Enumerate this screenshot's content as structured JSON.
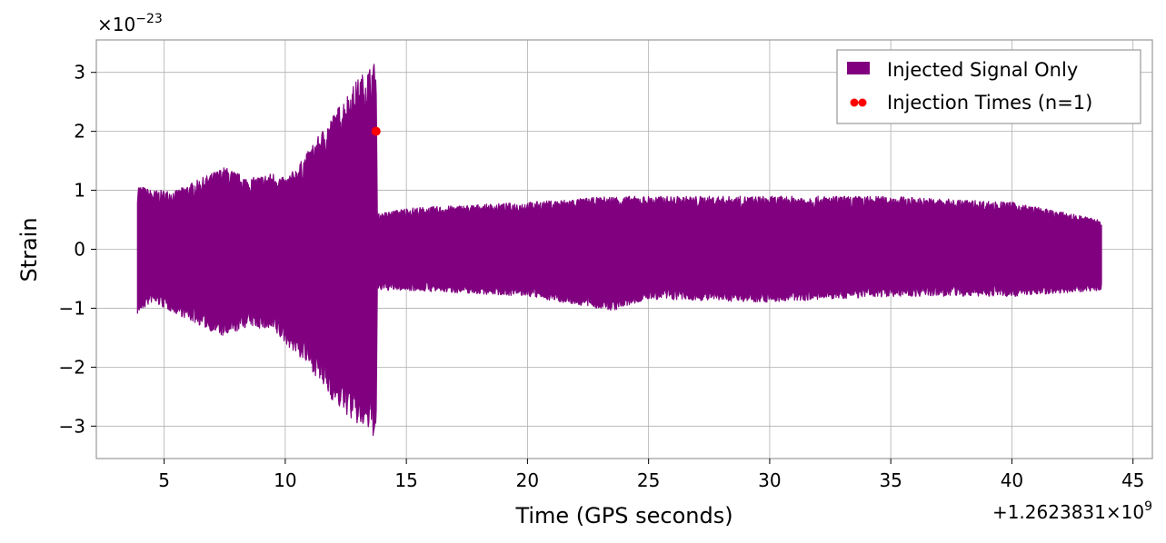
{
  "chart_data": {
    "type": "line",
    "xlabel": "Time (GPS seconds)",
    "ylabel": "Strain",
    "x_offset_text": "+1.2623831×10",
    "x_offset_exp": "9",
    "y_scale_text": "×10",
    "y_scale_exp": "−23",
    "xlim": [
      2.2,
      45.8
    ],
    "ylim": [
      -3.55,
      3.55
    ],
    "xticks": [
      5,
      10,
      15,
      20,
      25,
      30,
      35,
      40,
      45
    ],
    "xtick_labels": [
      "5",
      "10",
      "15",
      "20",
      "25",
      "30",
      "35",
      "40",
      "45"
    ],
    "yticks": [
      -3,
      -2,
      -1,
      0,
      1,
      2,
      3
    ],
    "ytick_labels": [
      "−3",
      "−2",
      "−1",
      "0",
      "1",
      "2",
      "3"
    ],
    "grid": true,
    "legend_position": "top-right",
    "series": [
      {
        "name": "Injected Signal Only",
        "color": "#800080",
        "kind": "filled-band",
        "x": [
          3.9,
          4.5,
          5.5,
          6.5,
          7.5,
          8.5,
          9.5,
          10.0,
          10.5,
          11.0,
          11.5,
          12.0,
          12.5,
          13.0,
          13.5,
          13.75,
          13.8,
          15,
          20,
          23.5,
          25,
          30,
          35,
          40,
          43.7
        ],
        "upper": [
          1.1,
          1.0,
          1.0,
          1.2,
          1.4,
          1.2,
          1.3,
          1.2,
          1.4,
          1.7,
          2.0,
          2.3,
          2.6,
          2.9,
          3.1,
          3.2,
          0.6,
          0.7,
          0.8,
          0.9,
          0.9,
          0.9,
          0.9,
          0.8,
          0.5
        ],
        "lower": [
          -1.1,
          -0.9,
          -1.1,
          -1.3,
          -1.5,
          -1.3,
          -1.4,
          -1.6,
          -1.8,
          -2.0,
          -2.3,
          -2.6,
          -2.8,
          -3.0,
          -3.1,
          -3.25,
          -0.7,
          -0.7,
          -0.8,
          -1.05,
          -0.85,
          -0.9,
          -0.8,
          -0.8,
          -0.7
        ]
      },
      {
        "name": "Injection Times (n=1)",
        "color": "#ff0000",
        "kind": "scatter",
        "points": [
          [
            13.75,
            2.0
          ]
        ]
      }
    ]
  }
}
